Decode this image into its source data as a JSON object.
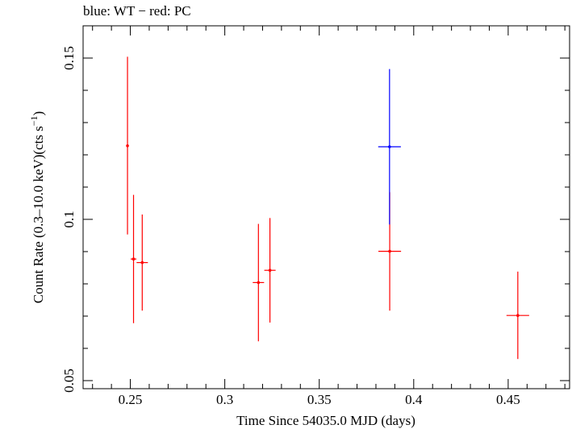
{
  "chart_data": {
    "type": "scatter",
    "title": "blue: WT − red: PC",
    "xlabel": "Time Since 54035.0 MJD (days)",
    "ylabel_parts": [
      "Count Rate (0.3–10.0 keV)(cts s",
      "−1",
      ")"
    ],
    "xlim": [
      0.225,
      0.4825
    ],
    "ylim": [
      0.0475,
      0.16
    ],
    "x_ticks": [
      0.25,
      0.3,
      0.35,
      0.4,
      0.45
    ],
    "x_tick_labels": [
      "0.25",
      "0.3",
      "0.35",
      "0.4",
      "0.45"
    ],
    "y_ticks": [
      0.05,
      0.1,
      0.15
    ],
    "y_tick_labels": [
      "0.05",
      "0.1",
      "0.15"
    ],
    "grid": false,
    "series": [
      {
        "color": "#ff0000",
        "points": [
          {
            "x": 0.2485,
            "y": 0.1228,
            "xerr": 0.0005,
            "ylo": 0.0953,
            "yhi": 0.1504
          },
          {
            "x": 0.2517,
            "y": 0.0877,
            "xerr": 0.0015,
            "ylo": 0.0678,
            "yhi": 0.1076
          },
          {
            "x": 0.2563,
            "y": 0.0866,
            "xerr": 0.003,
            "ylo": 0.0717,
            "yhi": 0.1015
          },
          {
            "x": 0.3178,
            "y": 0.0804,
            "xerr": 0.003,
            "ylo": 0.0622,
            "yhi": 0.0986
          },
          {
            "x": 0.3239,
            "y": 0.0842,
            "xerr": 0.003,
            "ylo": 0.068,
            "yhi": 0.1004
          },
          {
            "x": 0.3873,
            "y": 0.0901,
            "xerr": 0.006,
            "ylo": 0.0717,
            "yhi": 0.1084
          },
          {
            "x": 0.4551,
            "y": 0.0702,
            "xerr": 0.006,
            "ylo": 0.0567,
            "yhi": 0.0838
          }
        ]
      },
      {
        "color": "#0000ff",
        "points": [
          {
            "x": 0.3872,
            "y": 0.1225,
            "xerr": 0.006,
            "ylo": 0.0984,
            "yhi": 0.1466
          }
        ]
      }
    ]
  }
}
